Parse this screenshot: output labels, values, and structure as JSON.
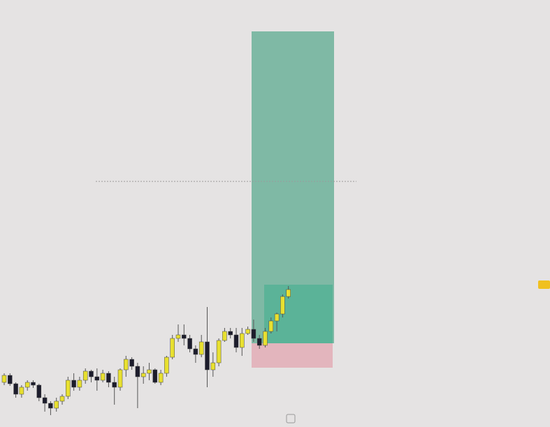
{
  "chart_data": {
    "type": "candlestick",
    "ylim": [
      0,
      612
    ],
    "up_color": "#e8e030",
    "down_color": "#1c1c2c",
    "open": [
      64,
      74,
      62,
      47,
      57,
      64,
      60,
      42,
      34,
      27,
      37,
      44,
      67,
      57,
      67,
      80,
      72,
      67,
      77,
      64,
      57,
      82,
      97,
      87,
      72,
      77,
      82,
      64,
      77,
      100,
      127,
      132,
      127,
      112,
      104,
      122,
      82,
      92,
      124,
      137,
      132,
      114,
      134,
      140,
      127,
      117,
      137,
      152,
      162,
      187
    ],
    "high": [
      77,
      77,
      64,
      60,
      67,
      67,
      62,
      47,
      37,
      42,
      47,
      72,
      77,
      72,
      84,
      82,
      84,
      82,
      80,
      72,
      84,
      102,
      100,
      92,
      87,
      92,
      84,
      82,
      102,
      132,
      147,
      147,
      132,
      117,
      132,
      172,
      107,
      127,
      142,
      142,
      142,
      142,
      144,
      154,
      132,
      142,
      157,
      164,
      190,
      202
    ],
    "low": [
      60,
      59,
      42,
      42,
      52,
      56,
      37,
      22,
      17,
      22,
      32,
      40,
      52,
      52,
      62,
      64,
      52,
      64,
      57,
      32,
      52,
      72,
      82,
      27,
      62,
      67,
      62,
      60,
      72,
      97,
      122,
      117,
      107,
      92,
      100,
      57,
      72,
      87,
      122,
      127,
      107,
      102,
      132,
      122,
      112,
      114,
      134,
      137,
      157,
      184
    ],
    "close": [
      74,
      62,
      47,
      57,
      64,
      60,
      42,
      34,
      27,
      37,
      44,
      67,
      57,
      67,
      80,
      72,
      67,
      77,
      64,
      57,
      82,
      97,
      87,
      72,
      77,
      82,
      64,
      77,
      100,
      127,
      132,
      127,
      112,
      104,
      122,
      82,
      92,
      124,
      137,
      132,
      114,
      134,
      140,
      127,
      117,
      137,
      152,
      162,
      187,
      197
    ]
  }
}
